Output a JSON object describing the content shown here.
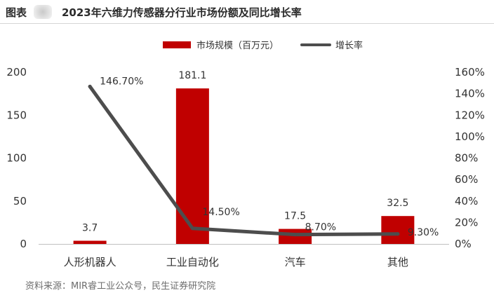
{
  "header": {
    "label": "图表",
    "title": "2023年六维力传感器分行业市场份额及同比增长率"
  },
  "source": "资料来源：MIR睿工业公众号，民生证券研究院",
  "chart_data": {
    "type": "bar",
    "categories": [
      "人形机器人",
      "工业自动化",
      "汽车",
      "其他"
    ],
    "series": [
      {
        "name": "市场规模（百万元）",
        "type": "bar",
        "axis": "left",
        "values": [
          3.7,
          181.1,
          17.5,
          32.5
        ],
        "labels": [
          "3.7",
          "181.1",
          "17.5",
          "32.5"
        ],
        "color": "#c00000"
      },
      {
        "name": "增长率",
        "type": "line",
        "axis": "right",
        "values": [
          146.7,
          14.5,
          8.7,
          9.3
        ],
        "labels": [
          "146.70%",
          "14.50%",
          "8.70%",
          "9.30%"
        ],
        "color": "#4d4d4d"
      }
    ],
    "y_left": {
      "min": 0,
      "max": 200,
      "ticks": [
        "0",
        "50",
        "100",
        "150",
        "200"
      ]
    },
    "y_right": {
      "min": 0,
      "max": 160,
      "unit": "%",
      "ticks": [
        "0%",
        "20%",
        "40%",
        "60%",
        "80%",
        "100%",
        "120%",
        "140%",
        "160%"
      ]
    },
    "legend": "top-center",
    "grid": false
  }
}
